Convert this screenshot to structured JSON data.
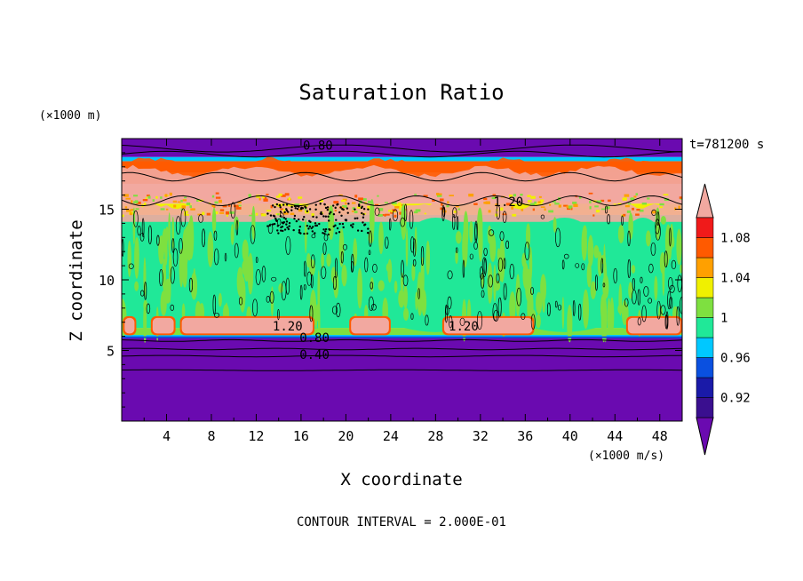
{
  "chart_data": {
    "type": "heatmap",
    "title": "Saturation Ratio",
    "xlabel": "X coordinate",
    "ylabel": "Z coordinate",
    "x_unit": "(×1000 m/s)",
    "y_unit": "(×1000 m)",
    "time_label": "t=781200 s",
    "footer": "CONTOUR INTERVAL = 2.000E-01",
    "xlim": [
      0,
      50
    ],
    "ylim": [
      0,
      20
    ],
    "x_ticks": [
      4,
      8,
      12,
      16,
      20,
      24,
      28,
      32,
      36,
      40,
      44,
      48
    ],
    "x_tick_labels": [
      "4",
      "8",
      "12",
      "16",
      "20",
      "24",
      "28",
      "32",
      "36",
      "40",
      "44",
      "48"
    ],
    "y_ticks": [
      5,
      10,
      15
    ],
    "y_tick_labels": [
      "5",
      "10",
      "15"
    ],
    "contour_labels": [
      {
        "text": "0.80",
        "x": 17.5,
        "y": 19.4
      },
      {
        "text": "1.20",
        "x": 34.5,
        "y": 15.4
      },
      {
        "text": "1.20",
        "x": 14.8,
        "y": 6.6
      },
      {
        "text": "0.80",
        "x": 17.2,
        "y": 5.8
      },
      {
        "text": "0.40",
        "x": 17.2,
        "y": 4.6
      },
      {
        "text": "1.20",
        "x": 30.5,
        "y": 6.6
      }
    ],
    "colorbar": {
      "levels": [
        0.9,
        0.92,
        0.94,
        0.96,
        0.98,
        1.0,
        1.02,
        1.04,
        1.06,
        1.08,
        1.1
      ],
      "labels": [
        "0.92",
        "0.96",
        "1",
        "1.04",
        "1.08"
      ],
      "label_values": [
        0.92,
        0.96,
        1.0,
        1.04,
        1.08
      ],
      "colors": [
        "#3a0f8f",
        "#1a1aa8",
        "#0a50e0",
        "#00c8ff",
        "#20e898",
        "#7ee040",
        "#f0f000",
        "#ffa000",
        "#ff5a00",
        "#f01a1a"
      ],
      "under_color": "#6a0ab0",
      "over_color": "#f2a8a0"
    },
    "bands": [
      {
        "z_from": 0,
        "z_to": 5.9,
        "value": 0.4,
        "color": "#6a0ab0"
      },
      {
        "z_from": 5.9,
        "z_to": 6.1,
        "value": 0.97,
        "color": "#00c8ff"
      },
      {
        "z_from": 6.1,
        "z_to": 6.6,
        "value": 1.0,
        "color": "#7ee040"
      },
      {
        "z_from": 6.6,
        "z_to": 14.6,
        "value": 0.99,
        "color": "#20e898"
      },
      {
        "z_from": 14.6,
        "z_to": 15.4,
        "value": 1.03,
        "color": "#f0f000"
      },
      {
        "z_from": 15.4,
        "z_to": 17.6,
        "value": 1.2,
        "color": "#f2a8a0"
      },
      {
        "z_from": 17.6,
        "z_to": 18.4,
        "value": 1.07,
        "color": "#ff5a00"
      },
      {
        "z_from": 18.4,
        "z_to": 18.7,
        "value": 0.96,
        "color": "#00c8ff"
      },
      {
        "z_from": 18.7,
        "z_to": 20,
        "value": 0.8,
        "color": "#6a0ab0"
      }
    ],
    "low_cloud_patches": [
      {
        "x_from": 0.1,
        "x_to": 1.3,
        "value": 1.2
      },
      {
        "x_from": 2.6,
        "x_to": 4.8,
        "value": 1.2
      },
      {
        "x_from": 5.2,
        "x_to": 17.2,
        "value": 1.2
      },
      {
        "x_from": 20.3,
        "x_to": 24.0,
        "value": 1.2
      },
      {
        "x_from": 28.6,
        "x_to": 36.8,
        "value": 1.2
      },
      {
        "x_from": 45.0,
        "x_to": 50.0,
        "value": 1.2
      }
    ],
    "clear_columns": [
      {
        "x_center": 14.5,
        "half_width": 3.2
      },
      {
        "x_center": 28.0,
        "half_width": 2.8
      },
      {
        "x_center": 39.5,
        "half_width": 2.8
      },
      {
        "x_center": 46.5,
        "half_width": 1.8
      }
    ],
    "grid": false
  }
}
